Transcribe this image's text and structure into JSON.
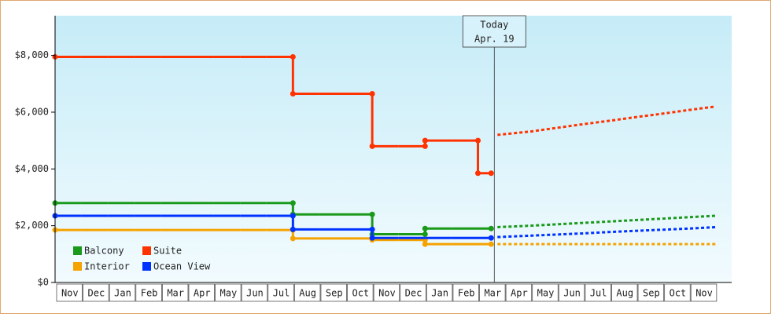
{
  "chart_data": {
    "type": "step-line",
    "categories": [
      "Nov",
      "Dec",
      "Jan",
      "Feb",
      "Mar",
      "Apr",
      "May",
      "Jun",
      "Jul",
      "Aug",
      "Sep",
      "Oct",
      "Nov",
      "Dec",
      "Jan",
      "Feb",
      "Mar",
      "Apr",
      "May",
      "Jun",
      "Jul",
      "Aug",
      "Sep",
      "Oct",
      "Nov"
    ],
    "ylim": [
      0,
      9400
    ],
    "yticks": [
      {
        "value": 0,
        "label": "$0"
      },
      {
        "value": 2000,
        "label": "$2,000"
      },
      {
        "value": 4000,
        "label": "$4,000"
      },
      {
        "value": 6000,
        "label": "$6,000"
      },
      {
        "value": 8000,
        "label": "$8,000"
      }
    ],
    "legend": "lower left",
    "annotation": {
      "lines": [
        "Today",
        "Apr. 19"
      ],
      "category": 16
    },
    "series": [
      {
        "name": "Balcony",
        "color": "#1a9a1a",
        "values": [
          2800,
          2800,
          2800,
          2800,
          2800,
          2800,
          2800,
          2800,
          2800,
          2400,
          2400,
          2400,
          1700,
          1700,
          1900,
          1900,
          1900,
          null,
          null,
          null,
          null,
          null,
          null,
          null,
          null
        ],
        "forecast": [
          null,
          null,
          null,
          null,
          null,
          null,
          null,
          null,
          null,
          null,
          null,
          null,
          null,
          null,
          null,
          null,
          1950,
          2000,
          2050,
          2100,
          2150,
          2200,
          2250,
          2300,
          2350
        ]
      },
      {
        "name": "Suite",
        "color": "#ff3300",
        "values": [
          7950,
          7950,
          7950,
          7950,
          7950,
          7950,
          7950,
          7950,
          7950,
          6650,
          6650,
          6650,
          4800,
          4800,
          5000,
          5000,
          3850,
          null,
          null,
          null,
          null,
          null,
          null,
          null,
          null
        ],
        "forecast": [
          null,
          null,
          null,
          null,
          null,
          null,
          null,
          null,
          null,
          null,
          null,
          null,
          null,
          null,
          null,
          null,
          5200,
          5320,
          5450,
          5580,
          5700,
          5830,
          5950,
          6080,
          6200
        ]
      },
      {
        "name": "Interior",
        "color": "#f5a300",
        "values": [
          1850,
          1850,
          1850,
          1850,
          1850,
          1850,
          1850,
          1850,
          1850,
          1550,
          1550,
          1550,
          1500,
          1500,
          1350,
          1350,
          1350,
          null,
          null,
          null,
          null,
          null,
          null,
          null,
          null
        ],
        "forecast": [
          null,
          null,
          null,
          null,
          null,
          null,
          null,
          null,
          null,
          null,
          null,
          null,
          null,
          null,
          null,
          null,
          1350,
          1350,
          1350,
          1350,
          1350,
          1350,
          1350,
          1350,
          1350
        ]
      },
      {
        "name": "Ocean View",
        "color": "#0033ff",
        "values": [
          2350,
          2350,
          2350,
          2350,
          2350,
          2350,
          2350,
          2350,
          2350,
          1870,
          1870,
          1870,
          1570,
          1570,
          1570,
          1570,
          1570,
          null,
          null,
          null,
          null,
          null,
          null,
          null,
          null
        ],
        "forecast": [
          null,
          null,
          null,
          null,
          null,
          null,
          null,
          null,
          null,
          null,
          null,
          null,
          null,
          null,
          null,
          null,
          1600,
          1650,
          1690,
          1730,
          1780,
          1820,
          1860,
          1900,
          1950
        ]
      }
    ]
  }
}
